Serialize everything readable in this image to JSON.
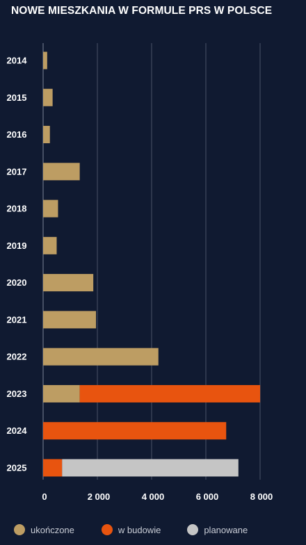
{
  "chart_data": {
    "type": "bar",
    "orientation": "horizontal",
    "stacked": true,
    "title": "NOWE MIESZKANIA W FORMULE PRS W POLSCE",
    "categories": [
      "2014",
      "2015",
      "2016",
      "2017",
      "2018",
      "2019",
      "2020",
      "2021",
      "2022",
      "2023",
      "2024",
      "2025"
    ],
    "series": [
      {
        "name": "ukończone",
        "color": "#bd9d63",
        "values": [
          150,
          350,
          250,
          1350,
          550,
          500,
          1850,
          1950,
          4250,
          1350,
          0,
          0
        ]
      },
      {
        "name": "w budowie",
        "color": "#e8540f",
        "values": [
          0,
          0,
          0,
          0,
          0,
          0,
          0,
          0,
          0,
          6650,
          6750,
          700
        ]
      },
      {
        "name": "planowane",
        "color": "#c5c5c5",
        "values": [
          0,
          0,
          0,
          0,
          0,
          0,
          0,
          0,
          0,
          0,
          0,
          6500
        ]
      }
    ],
    "xticks": [
      0,
      2000,
      4000,
      6000,
      8000
    ],
    "xtick_labels": [
      "0",
      "2 000",
      "4 000",
      "6 000",
      "8 000"
    ],
    "xlim": [
      0,
      8000
    ],
    "grid": "vertical",
    "legend_position": "bottom"
  }
}
